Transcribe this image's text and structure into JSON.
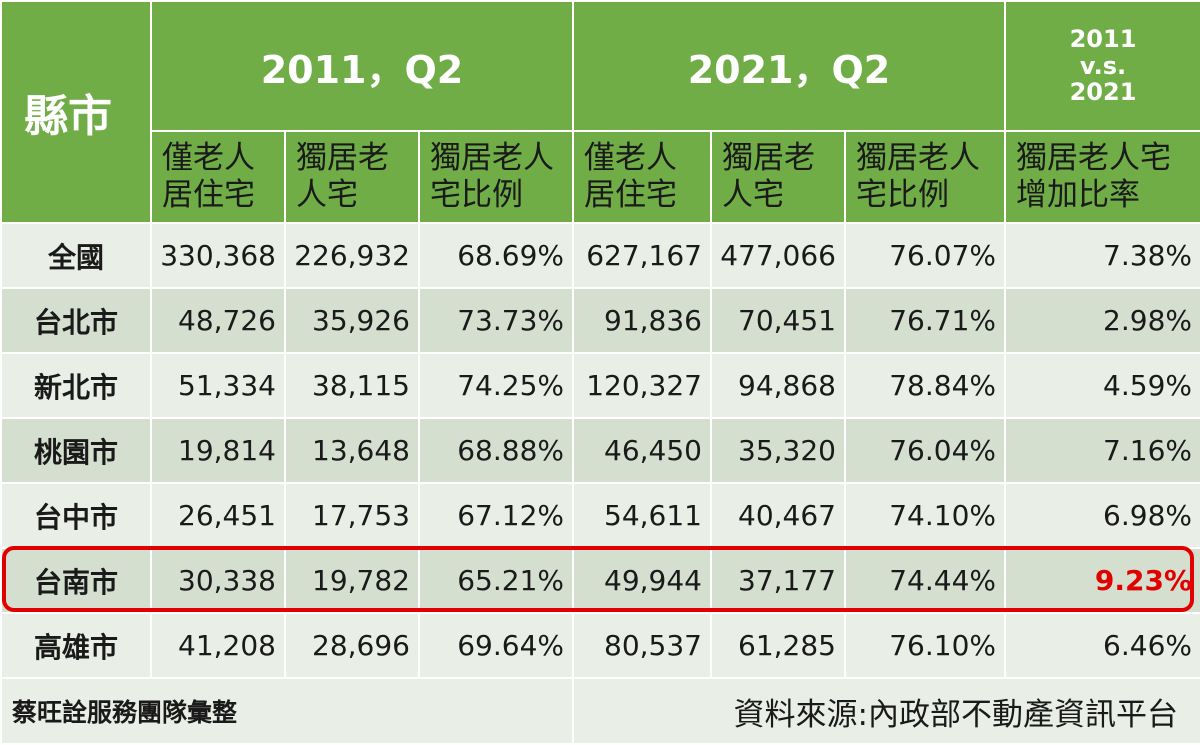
{
  "header": {
    "region": "縣市",
    "group2011": "2011，Q2",
    "group2021": "2021，Q2",
    "compare": [
      "2011",
      "v.s.",
      "2021"
    ]
  },
  "subheaders": [
    [
      "僅老人",
      "居住宅"
    ],
    [
      "獨居老",
      "人宅"
    ],
    [
      "獨居老人",
      "宅比例"
    ],
    [
      "僅老人",
      "居住宅"
    ],
    [
      "獨居老",
      "人宅"
    ],
    [
      "獨居老人",
      "宅比例"
    ],
    [
      "獨居老人宅",
      "增加比率"
    ]
  ],
  "rows": [
    {
      "name": "全國",
      "v": [
        "330,368",
        "226,932",
        "68.69%",
        "627,167",
        "477,066",
        "76.07%",
        "7.38%"
      ]
    },
    {
      "name": "台北市",
      "v": [
        "48,726",
        "35,926",
        "73.73%",
        "91,836",
        "70,451",
        "76.71%",
        "2.98%"
      ]
    },
    {
      "name": "新北市",
      "v": [
        "51,334",
        "38,115",
        "74.25%",
        "120,327",
        "94,868",
        "78.84%",
        "4.59%"
      ]
    },
    {
      "name": "桃園市",
      "v": [
        "19,814",
        "13,648",
        "68.88%",
        "46,450",
        "35,320",
        "76.04%",
        "7.16%"
      ]
    },
    {
      "name": "台中市",
      "v": [
        "26,451",
        "17,753",
        "67.12%",
        "54,611",
        "40,467",
        "74.10%",
        "6.98%"
      ]
    },
    {
      "name": "台南市",
      "v": [
        "30,338",
        "19,782",
        "65.21%",
        "49,944",
        "37,177",
        "74.44%",
        "9.23%"
      ]
    },
    {
      "name": "高雄市",
      "v": [
        "41,208",
        "28,696",
        "69.64%",
        "80,537",
        "61,285",
        "76.10%",
        "6.46%"
      ]
    }
  ],
  "highlight": {
    "row": 5,
    "color": "#e00000"
  },
  "footer": {
    "left": "蔡旺詮服務團隊彙整",
    "right": "資料來源:內政部不動產資訊平台"
  },
  "colors": {
    "header_green": "#70ad47",
    "row_light": "#e9efe6",
    "row_dark": "#d4dfcf",
    "highlight_red": "#e00000"
  }
}
